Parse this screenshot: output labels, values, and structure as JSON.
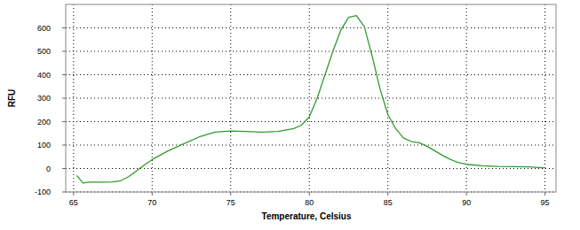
{
  "chart_data": {
    "type": "line",
    "x_label": "Temperature, Celsius",
    "y_label": "RFU",
    "x": [
      65.2,
      65.6,
      66,
      67,
      67.5,
      68,
      68.5,
      69,
      69.5,
      70,
      71,
      72,
      73,
      74,
      75,
      76,
      77,
      78,
      79,
      79.5,
      80,
      80.5,
      81,
      81.5,
      82,
      82.5,
      83,
      83.5,
      84,
      84.5,
      85,
      85.5,
      86,
      86.5,
      87,
      87.5,
      88,
      88.5,
      89,
      89.5,
      90,
      91,
      92,
      93,
      94,
      95
    ],
    "series": [
      {
        "color": "#2e9b2e",
        "values": [
          -30,
          -62,
          -58,
          -58,
          -57,
          -52,
          -35,
          -10,
          15,
          38,
          75,
          105,
          135,
          155,
          160,
          158,
          155,
          158,
          170,
          185,
          220,
          300,
          400,
          500,
          590,
          645,
          652,
          605,
          480,
          340,
          230,
          170,
          130,
          115,
          110,
          95,
          75,
          55,
          38,
          25,
          18,
          12,
          9,
          8,
          7,
          2
        ]
      }
    ],
    "xlim": [
      64.5,
      95.7
    ],
    "xticks": [
      65,
      70,
      75,
      80,
      85,
      90,
      95
    ],
    "ylim": [
      -100,
      700
    ],
    "yticks": [
      -100,
      0,
      100,
      200,
      300,
      400,
      500,
      600
    ],
    "grid": true
  }
}
